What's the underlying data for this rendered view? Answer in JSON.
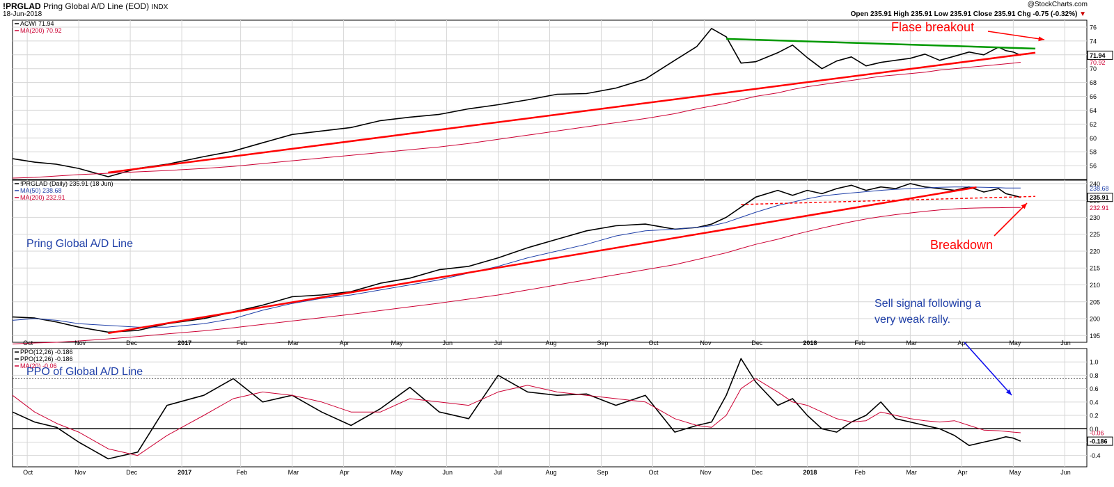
{
  "header": {
    "symbol": "!PRGLAD",
    "name": "Pring Global A/D Line (EOD)",
    "exchange": "INDX",
    "date": "18-Jun-2018",
    "watermark": "@StockCharts.com",
    "ohlc_text": "Open 235.91  High 235.91  Low 235.91  Close 235.91  Chg -0.75 (-0.32%)",
    "chg_marker": "▼"
  },
  "colors": {
    "price": "#000000",
    "ma200": "#cc0033",
    "ma50": "#1f3fa8",
    "trendline": "#ff0000",
    "green_line": "#009900",
    "annotation_red": "#ff0000",
    "annotation_blue": "#1f3fa8",
    "arrow_blue": "#1010ee",
    "grid": "#d6d6d6"
  },
  "chart_data": [
    {
      "panel": "top",
      "type": "line",
      "legend": [
        {
          "text": "ACWI 71.94",
          "color": "#000000"
        },
        {
          "text": "MA(200) 70.92",
          "color": "#cc0033"
        }
      ],
      "ylim": [
        54,
        77
      ],
      "yticks": [
        "56",
        "58",
        "60",
        "62",
        "64",
        "66",
        "68",
        "70",
        "72",
        "74",
        "76"
      ],
      "last_labels": [
        {
          "text": "71.94",
          "value": 71.94,
          "box": true,
          "color": "#000000"
        },
        {
          "text": "70.92",
          "value": 70.92,
          "box": false,
          "color": "#cc0033"
        }
      ],
      "x": [
        0,
        3,
        6,
        9,
        13,
        17,
        21,
        26,
        30,
        34,
        38,
        42,
        46,
        50,
        54,
        58,
        62,
        66,
        70,
        74,
        78,
        82,
        86,
        90,
        93,
        95,
        97,
        99,
        101,
        104,
        106,
        108,
        110,
        112,
        114,
        116,
        118,
        120,
        122,
        124,
        126,
        128,
        130,
        132,
        134,
        135,
        136,
        137
      ],
      "series": [
        {
          "name": "ACWI",
          "values": [
            57.0,
            56.5,
            56.2,
            55.6,
            54.4,
            55.6,
            56.2,
            57.3,
            58.1,
            59.3,
            60.5,
            61.0,
            61.5,
            62.5,
            63.0,
            63.4,
            64.2,
            64.8,
            65.5,
            66.3,
            66.4,
            67.2,
            68.5,
            71.2,
            73.2,
            75.8,
            74.6,
            70.8,
            71.0,
            72.3,
            73.4,
            71.6,
            70.0,
            71.1,
            71.7,
            70.4,
            70.9,
            71.2,
            71.5,
            72.1,
            71.2,
            71.8,
            72.4,
            72.0,
            73.1,
            72.6,
            72.4,
            71.94
          ]
        },
        {
          "name": "MA(200)",
          "values": [
            54.2,
            54.3,
            54.5,
            54.7,
            54.9,
            55.1,
            55.3,
            55.6,
            55.9,
            56.3,
            56.7,
            57.1,
            57.5,
            57.9,
            58.3,
            58.7,
            59.2,
            59.8,
            60.4,
            61.0,
            61.6,
            62.2,
            62.8,
            63.5,
            64.2,
            64.6,
            65.0,
            65.5,
            66.0,
            66.5,
            67.0,
            67.4,
            67.7,
            68.0,
            68.3,
            68.6,
            68.9,
            69.1,
            69.3,
            69.5,
            69.8,
            70.0,
            70.2,
            70.4,
            70.6,
            70.7,
            70.8,
            70.92
          ]
        }
      ],
      "trendlines": [
        {
          "name": "red",
          "color": "#ff0000",
          "x": [
            13,
            139
          ],
          "y": [
            55.0,
            72.3
          ]
        },
        {
          "name": "green",
          "color": "#009900",
          "x": [
            97,
            139
          ],
          "y": [
            74.3,
            72.9
          ]
        }
      ]
    },
    {
      "panel": "middle",
      "type": "line",
      "legend": [
        {
          "text": "!PRGLAD (Daily) 235.91 (18 Jun)",
          "color": "#000000"
        },
        {
          "text": "MA(50) 238.68",
          "color": "#1f3fa8"
        },
        {
          "text": "MA(200) 232.91",
          "color": "#cc0033"
        }
      ],
      "ylim": [
        193,
        241
      ],
      "yticks": [
        "195",
        "200",
        "205",
        "210",
        "215",
        "220",
        "225",
        "230",
        "235",
        "240"
      ],
      "last_labels": [
        {
          "text": "238.68",
          "value": 238.68,
          "box": false,
          "color": "#1f3fa8"
        },
        {
          "text": "235.91",
          "value": 235.91,
          "box": true,
          "color": "#000000"
        },
        {
          "text": "232.91",
          "value": 232.91,
          "box": false,
          "color": "#cc0033"
        }
      ],
      "x": [
        0,
        3,
        6,
        9,
        13,
        17,
        21,
        26,
        30,
        34,
        38,
        42,
        46,
        50,
        54,
        58,
        62,
        66,
        70,
        74,
        78,
        82,
        86,
        90,
        93,
        95,
        97,
        99,
        101,
        104,
        106,
        108,
        110,
        112,
        114,
        116,
        118,
        120,
        122,
        124,
        126,
        128,
        130,
        132,
        134,
        135,
        136,
        137
      ],
      "series": [
        {
          "name": "!PRGLAD",
          "values": [
            200.5,
            200.2,
            199.0,
            197.5,
            196.0,
            196.5,
            198.5,
            200.0,
            202.0,
            204.0,
            206.5,
            207.0,
            208.0,
            210.5,
            212.0,
            214.5,
            215.5,
            218.0,
            221.0,
            223.5,
            226.0,
            227.5,
            228.0,
            226.5,
            227.0,
            228.0,
            230.0,
            233.0,
            236.0,
            238.0,
            236.5,
            238.0,
            237.0,
            238.5,
            239.5,
            238.0,
            239.0,
            238.5,
            240.0,
            239.0,
            238.5,
            238.0,
            239.0,
            237.5,
            238.5,
            237.0,
            236.5,
            235.91
          ]
        },
        {
          "name": "MA(50)",
          "values": [
            199.5,
            200.0,
            199.5,
            198.5,
            198.0,
            197.5,
            197.5,
            198.5,
            200.0,
            202.5,
            204.5,
            206.0,
            207.0,
            208.5,
            210.0,
            211.5,
            213.5,
            215.5,
            218.0,
            220.0,
            222.0,
            224.5,
            226.0,
            226.5,
            227.0,
            227.5,
            228.5,
            230.0,
            231.5,
            233.5,
            234.5,
            235.5,
            236.3,
            236.8,
            237.2,
            237.6,
            238.0,
            238.3,
            238.5,
            238.7,
            238.9,
            239.0,
            239.0,
            238.9,
            238.8,
            238.7,
            238.7,
            238.68
          ]
        },
        {
          "name": "MA(200)",
          "values": [
            192.5,
            192.8,
            193.0,
            193.4,
            194.0,
            194.7,
            195.5,
            196.4,
            197.3,
            198.3,
            199.3,
            200.3,
            201.3,
            202.4,
            203.5,
            204.6,
            205.8,
            207.0,
            208.5,
            210.0,
            211.5,
            213.0,
            214.5,
            216.0,
            217.5,
            218.5,
            219.5,
            220.8,
            222.0,
            223.5,
            224.7,
            225.8,
            226.8,
            227.8,
            228.7,
            229.5,
            230.2,
            230.8,
            231.3,
            231.8,
            232.2,
            232.5,
            232.7,
            232.8,
            232.85,
            232.88,
            232.9,
            232.91
          ]
        }
      ],
      "trendlines": [
        {
          "name": "red",
          "color": "#ff0000",
          "x": [
            13,
            131
          ],
          "y": [
            195.7,
            238.9
          ]
        },
        {
          "name": "red-dotted",
          "color": "#ff0000",
          "dashed": true,
          "x": [
            99,
            139
          ],
          "y": [
            233.8,
            236.2
          ]
        }
      ]
    },
    {
      "panel": "bottom",
      "type": "line",
      "legend": [
        {
          "text": "PPO(12,26) -0.186",
          "color": "#000000"
        },
        {
          "text": "PPO(12,26) -0.186",
          "color": "#000000"
        },
        {
          "text": "MA(20) -0.06",
          "color": "#cc0033"
        }
      ],
      "ylim": [
        -0.57,
        1.2
      ],
      "yticks": [
        "-0.4",
        "-0.2",
        "0.0",
        "0.2",
        "0.4",
        "0.6",
        "0.8",
        "1.0"
      ],
      "last_labels": [
        {
          "text": "-0.06",
          "value": -0.06,
          "box": false,
          "color": "#cc0033"
        },
        {
          "text": "-0.186",
          "value": -0.186,
          "box": true,
          "color": "#000000"
        }
      ],
      "x": [
        0,
        3,
        6,
        9,
        13,
        17,
        21,
        26,
        30,
        34,
        38,
        42,
        46,
        50,
        54,
        58,
        62,
        66,
        70,
        74,
        78,
        82,
        86,
        90,
        93,
        95,
        97,
        99,
        101,
        104,
        106,
        108,
        110,
        112,
        114,
        116,
        118,
        120,
        122,
        124,
        126,
        128,
        130,
        132,
        134,
        135,
        136,
        137
      ],
      "series": [
        {
          "name": "PPO(12,26)",
          "values": [
            0.25,
            0.1,
            0.02,
            -0.2,
            -0.45,
            -0.35,
            0.35,
            0.5,
            0.75,
            0.4,
            0.5,
            0.25,
            0.05,
            0.3,
            0.62,
            0.25,
            0.15,
            0.8,
            0.55,
            0.5,
            0.52,
            0.35,
            0.5,
            -0.05,
            0.05,
            0.1,
            0.5,
            1.05,
            0.7,
            0.35,
            0.45,
            0.2,
            0.0,
            -0.05,
            0.1,
            0.2,
            0.4,
            0.15,
            0.1,
            0.05,
            0.0,
            -0.1,
            -0.25,
            -0.2,
            -0.15,
            -0.12,
            -0.14,
            -0.186
          ]
        },
        {
          "name": "MA(20)",
          "values": [
            0.5,
            0.25,
            0.08,
            -0.05,
            -0.3,
            -0.4,
            -0.1,
            0.2,
            0.45,
            0.55,
            0.5,
            0.4,
            0.25,
            0.25,
            0.45,
            0.4,
            0.35,
            0.55,
            0.65,
            0.55,
            0.5,
            0.45,
            0.4,
            0.15,
            0.05,
            0.02,
            0.2,
            0.6,
            0.75,
            0.55,
            0.4,
            0.35,
            0.25,
            0.15,
            0.1,
            0.12,
            0.25,
            0.2,
            0.15,
            0.12,
            0.1,
            0.12,
            0.05,
            -0.02,
            -0.03,
            -0.04,
            -0.05,
            -0.06
          ]
        }
      ],
      "reference_lines": [
        0.0,
        0.75
      ]
    }
  ],
  "x_axis": {
    "month_labels": [
      "Oct",
      "Nov",
      "Dec",
      "2017",
      "Feb",
      "Mar",
      "Apr",
      "May",
      "Jun",
      "Jul",
      "Aug",
      "Sep",
      "Oct",
      "Nov",
      "Dec",
      "2018",
      "Feb",
      "Mar",
      "Apr",
      "May",
      "Jun"
    ],
    "month_positions": [
      2,
      9,
      16,
      23,
      31,
      38,
      45,
      52,
      59,
      66,
      73,
      80,
      87,
      94,
      101,
      108,
      115,
      122,
      129,
      136,
      143
    ]
  },
  "annotations": {
    "false_breakout": "Flase breakout",
    "top_panel_title": "Pring Global A/D Line",
    "breakdown": "Breakdown",
    "sell_signal_1": "Sell signal following a",
    "sell_signal_2": "very weak rally.",
    "ppo_title": "PPO of  Global A/D Line"
  }
}
